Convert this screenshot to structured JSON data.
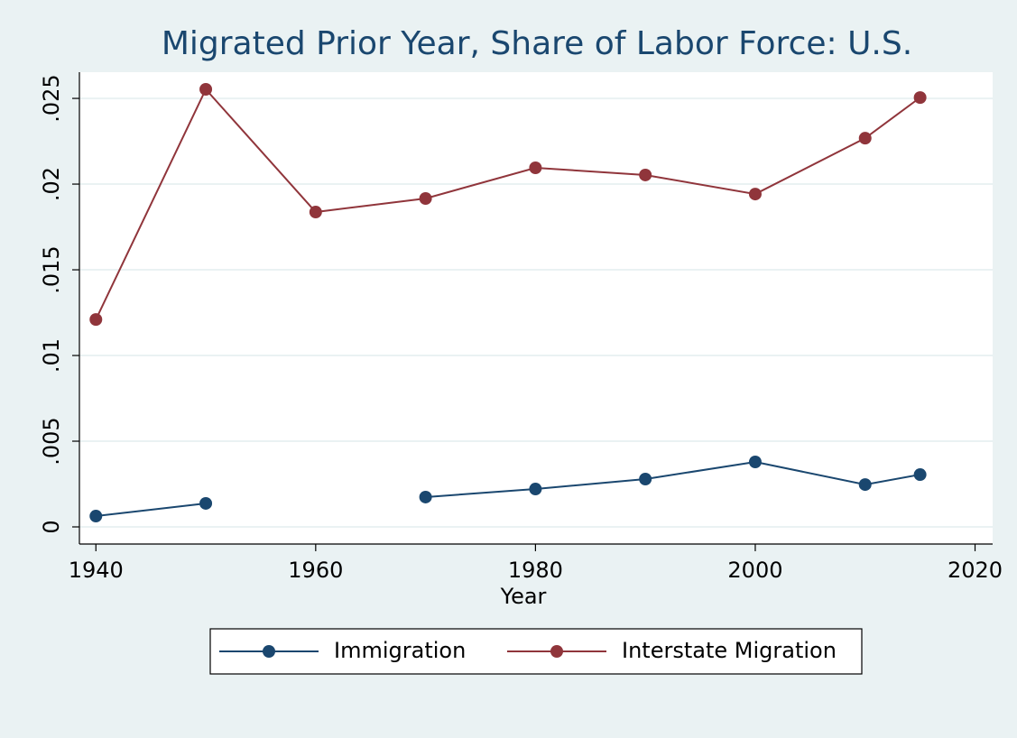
{
  "chart_data": {
    "type": "line",
    "title": "Migrated Prior Year, Share of Labor Force: U.S.",
    "x_label": "Year",
    "x": [
      1940,
      1950,
      1960,
      1970,
      1980,
      1990,
      2000,
      2010,
      2015
    ],
    "series": [
      {
        "name": "Immigration",
        "color": "#1a476f",
        "values": [
          0.00063,
          0.00137,
          null,
          0.00174,
          0.00221,
          0.00279,
          0.00379,
          0.00247,
          0.00305
        ]
      },
      {
        "name": "Interstate Migration",
        "color": "#90353b",
        "values": [
          0.0121,
          0.02553,
          0.01837,
          0.01916,
          0.02095,
          0.02053,
          0.01942,
          0.02268,
          0.02505
        ]
      }
    ],
    "xlim": [
      1938.5,
      2021.6
    ],
    "xticks": [
      1940,
      1960,
      1980,
      2000,
      2020
    ],
    "ylim": [
      -0.001,
      0.02653
    ],
    "yticks": [
      0,
      {
        "value": 0.005,
        "label": ".005"
      },
      {
        "value": 0.01,
        "label": ".01"
      },
      {
        "value": 0.015,
        "label": ".015"
      },
      {
        "value": 0.02,
        "label": ".02"
      },
      {
        "value": 0.025,
        "label": ".025"
      }
    ],
    "grid": true,
    "legend": "bottom"
  }
}
